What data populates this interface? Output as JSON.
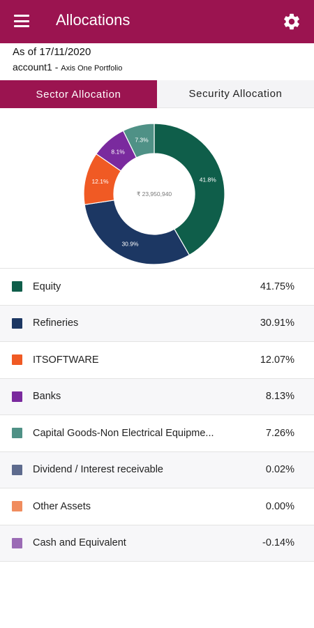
{
  "header": {
    "title": "Allocations"
  },
  "info": {
    "as_of": "As of 17/11/2020",
    "account": "account1",
    "separator": " - ",
    "portfolio": "Axis One Portfolio"
  },
  "tabs": {
    "sector": "Sector Allocation",
    "security": "Security Allocation",
    "active": "sector"
  },
  "chart_data": {
    "type": "pie",
    "center_label": "₹ 23,950,940",
    "slices": [
      {
        "label": "41.8%",
        "value": 41.75,
        "color": "#0f5e4a"
      },
      {
        "label": "30.9%",
        "value": 30.91,
        "color": "#1c3763"
      },
      {
        "label": "12.1%",
        "value": 12.07,
        "color": "#f05a24"
      },
      {
        "label": "8.1%",
        "value": 8.13,
        "color": "#7a2a9e"
      },
      {
        "label": "7.3%",
        "value": 7.26,
        "color": "#4f9186"
      }
    ]
  },
  "legend": [
    {
      "name": "Equity",
      "percent": "41.75%",
      "color": "#0f5e4a"
    },
    {
      "name": "Refineries",
      "percent": "30.91%",
      "color": "#1c3763"
    },
    {
      "name": "ITSOFTWARE",
      "percent": "12.07%",
      "color": "#f05a24"
    },
    {
      "name": "Banks",
      "percent": "8.13%",
      "color": "#7a2a9e"
    },
    {
      "name": "Capital Goods-Non Electrical Equipme...",
      "percent": "7.26%",
      "color": "#4f9186"
    },
    {
      "name": "Dividend / Interest receivable",
      "percent": "0.02%",
      "color": "#5e6b8e"
    },
    {
      "name": "Other Assets",
      "percent": "0.00%",
      "color": "#f08c5e"
    },
    {
      "name": "Cash and Equivalent",
      "percent": "-0.14%",
      "color": "#9b6bb5"
    }
  ]
}
